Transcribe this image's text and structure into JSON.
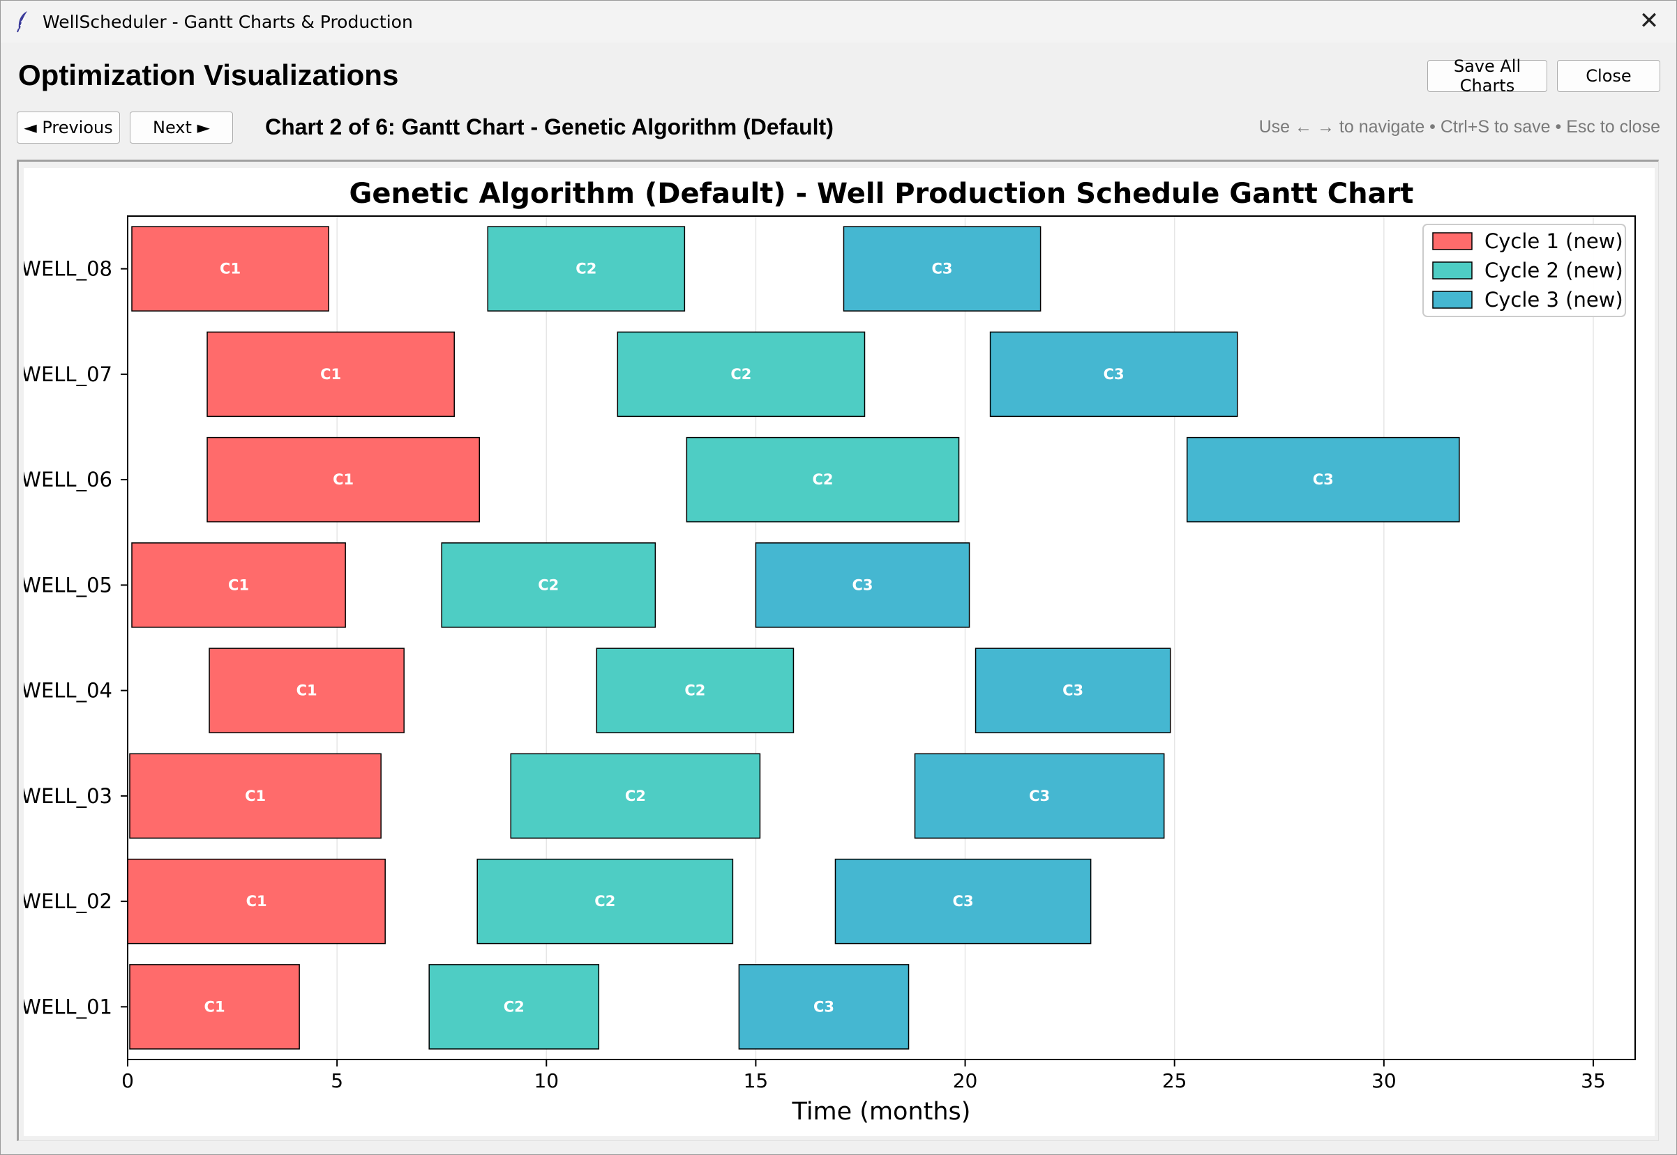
{
  "window": {
    "title": "WellScheduler - Gantt Charts & Production",
    "close_glyph": "✕",
    "icon": "feather-icon"
  },
  "header": {
    "title": "Optimization Visualizations",
    "save_all_label": "Save All Charts",
    "close_label": "Close"
  },
  "nav": {
    "previous_label": "◄ Previous",
    "next_label": "Next ►",
    "chart_caption": "Chart 2 of 6: Gantt Chart - Genetic Algorithm (Default)",
    "hint": "Use ← → to navigate • Ctrl+S to save • Esc to close"
  },
  "chart_data": {
    "type": "gantt",
    "title": "Genetic Algorithm (Default) - Well Production Schedule Gantt Chart",
    "xlabel": "Time (months)",
    "ylabel": "",
    "xlim": [
      0,
      36
    ],
    "xticks": [
      0,
      5,
      10,
      15,
      20,
      25,
      30,
      35
    ],
    "grid": "vertical",
    "legend_position": "top-right",
    "wells": [
      "WELL_01",
      "WELL_02",
      "WELL_03",
      "WELL_04",
      "WELL_05",
      "WELL_06",
      "WELL_07",
      "WELL_08"
    ],
    "series": [
      {
        "name": "Cycle 1 (new)",
        "label": "C1",
        "color": "#ff6b6b",
        "bars": [
          {
            "well": "WELL_01",
            "start": 0.05,
            "end": 4.1
          },
          {
            "well": "WELL_02",
            "start": 0.0,
            "end": 6.15
          },
          {
            "well": "WELL_03",
            "start": 0.05,
            "end": 6.05
          },
          {
            "well": "WELL_04",
            "start": 1.95,
            "end": 6.6
          },
          {
            "well": "WELL_05",
            "start": 0.1,
            "end": 5.2
          },
          {
            "well": "WELL_06",
            "start": 1.9,
            "end": 8.4
          },
          {
            "well": "WELL_07",
            "start": 1.9,
            "end": 7.8
          },
          {
            "well": "WELL_08",
            "start": 0.1,
            "end": 4.8
          }
        ]
      },
      {
        "name": "Cycle 2 (new)",
        "label": "C2",
        "color": "#4ecdc4",
        "bars": [
          {
            "well": "WELL_01",
            "start": 7.2,
            "end": 11.25
          },
          {
            "well": "WELL_02",
            "start": 8.35,
            "end": 14.45
          },
          {
            "well": "WELL_03",
            "start": 9.15,
            "end": 15.1
          },
          {
            "well": "WELL_04",
            "start": 11.2,
            "end": 15.9
          },
          {
            "well": "WELL_05",
            "start": 7.5,
            "end": 12.6
          },
          {
            "well": "WELL_06",
            "start": 13.35,
            "end": 19.85
          },
          {
            "well": "WELL_07",
            "start": 11.7,
            "end": 17.6
          },
          {
            "well": "WELL_08",
            "start": 8.6,
            "end": 13.3
          }
        ]
      },
      {
        "name": "Cycle 3 (new)",
        "label": "C3",
        "color": "#45b7d1",
        "bars": [
          {
            "well": "WELL_01",
            "start": 14.6,
            "end": 18.65
          },
          {
            "well": "WELL_02",
            "start": 16.9,
            "end": 23.0
          },
          {
            "well": "WELL_03",
            "start": 18.8,
            "end": 24.75
          },
          {
            "well": "WELL_04",
            "start": 20.25,
            "end": 24.9
          },
          {
            "well": "WELL_05",
            "start": 15.0,
            "end": 20.1
          },
          {
            "well": "WELL_06",
            "start": 25.3,
            "end": 31.8
          },
          {
            "well": "WELL_07",
            "start": 20.6,
            "end": 26.5
          },
          {
            "well": "WELL_08",
            "start": 17.1,
            "end": 21.8
          }
        ]
      }
    ]
  }
}
